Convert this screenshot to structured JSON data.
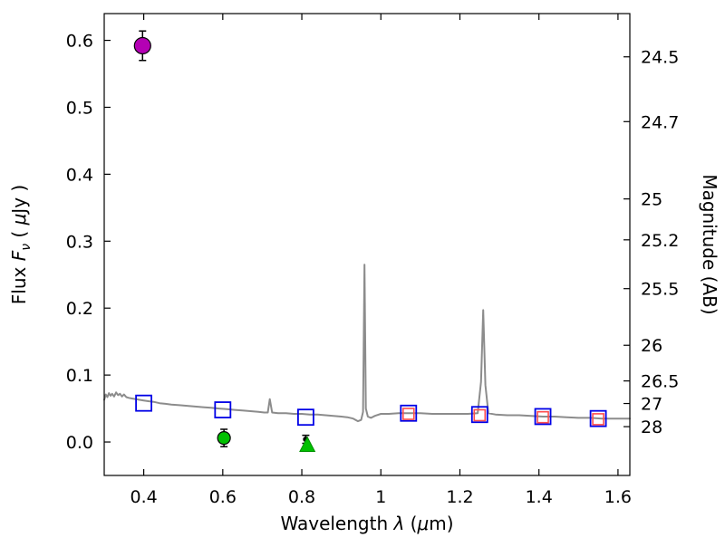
{
  "colors": {
    "background": "#ffffff",
    "frame": "#000000",
    "spectrum_gray": "#8c8c8c",
    "blue_square": "#0000e6",
    "red_square": "#ff4d4d",
    "magenta_point": "#b400b4",
    "green_point": "#00c000",
    "black_point": "#000000"
  },
  "chart_data": {
    "type": "line",
    "title": "",
    "xlabel_text": "Wavelength λ (μm)",
    "ylabel_left_text": "Flux Fν ( μJy )",
    "ylabel_right_text": "Magnitude (AB)",
    "xlabel_parts": [
      {
        "t": "Wavelength  "
      },
      {
        "t": "λ",
        "i": 1
      },
      {
        "t": " ("
      },
      {
        "t": "μ",
        "i": 1
      },
      {
        "t": "m)"
      }
    ],
    "ylabel_left_parts": [
      {
        "t": "Flux  "
      },
      {
        "t": "F",
        "i": 1
      },
      {
        "t": "ν",
        "i": 1,
        "sub": 1
      },
      {
        "t": "  ( "
      },
      {
        "t": "μ",
        "i": 1
      },
      {
        "t": "Jy )"
      }
    ],
    "ylabel_right_parts": [
      {
        "t": "Magnitude (AB)"
      }
    ],
    "xlim": [
      0.3,
      1.63
    ],
    "ylim": [
      -0.05,
      0.64
    ],
    "grid": false,
    "legend": null,
    "x_ticks": [
      0.4,
      0.6,
      0.8,
      1.0,
      1.2,
      1.4,
      1.6
    ],
    "x_tick_labels": [
      "0.4",
      "0.6",
      "0.8",
      "1",
      "1.2",
      "1.4",
      "1.6"
    ],
    "y_ticks_left": [
      0.0,
      0.1,
      0.2,
      0.3,
      0.4,
      0.5,
      0.6
    ],
    "y_tick_labels_left": [
      "0.0",
      "0.1",
      "0.2",
      "0.3",
      "0.4",
      "0.5",
      "0.6"
    ],
    "y_ticks_right": [
      {
        "label": "24.5",
        "flux": 0.5754
      },
      {
        "label": "24.7",
        "flux": 0.4786
      },
      {
        "label": "25",
        "flux": 0.3631
      },
      {
        "label": "25.2",
        "flux": 0.302
      },
      {
        "label": "25.5",
        "flux": 0.2291
      },
      {
        "label": "26",
        "flux": 0.1445
      },
      {
        "label": "26.5",
        "flux": 0.0912
      },
      {
        "label": "27",
        "flux": 0.0575
      },
      {
        "label": "28",
        "flux": 0.0229
      }
    ],
    "series": [
      {
        "name": "model-spectrum",
        "kind": "line",
        "color": "#8c8c8c",
        "width": 2,
        "x": [
          0.3,
          0.304,
          0.308,
          0.312,
          0.316,
          0.32,
          0.325,
          0.33,
          0.335,
          0.34,
          0.345,
          0.35,
          0.356,
          0.362,
          0.37,
          0.38,
          0.39,
          0.4,
          0.412,
          0.425,
          0.44,
          0.455,
          0.47,
          0.49,
          0.51,
          0.53,
          0.55,
          0.57,
          0.59,
          0.61,
          0.63,
          0.65,
          0.67,
          0.69,
          0.705,
          0.714,
          0.719,
          0.725,
          0.74,
          0.76,
          0.78,
          0.8,
          0.82,
          0.84,
          0.86,
          0.88,
          0.9,
          0.915,
          0.93,
          0.942,
          0.95,
          0.955,
          0.9585,
          0.962,
          0.967,
          0.975,
          0.985,
          1.0,
          1.02,
          1.045,
          1.07,
          1.1,
          1.13,
          1.16,
          1.19,
          1.22,
          1.245,
          1.2535,
          1.259,
          1.2645,
          1.272,
          1.29,
          1.32,
          1.35,
          1.38,
          1.41,
          1.44,
          1.47,
          1.5,
          1.53,
          1.56,
          1.59,
          1.615,
          1.63
        ],
        "y": [
          0.063,
          0.071,
          0.067,
          0.073,
          0.069,
          0.072,
          0.068,
          0.074,
          0.07,
          0.072,
          0.068,
          0.071,
          0.067,
          0.066,
          0.065,
          0.064,
          0.063,
          0.062,
          0.061,
          0.06,
          0.058,
          0.057,
          0.056,
          0.055,
          0.054,
          0.053,
          0.052,
          0.051,
          0.05,
          0.049,
          0.048,
          0.047,
          0.046,
          0.045,
          0.044,
          0.044,
          0.064,
          0.044,
          0.043,
          0.043,
          0.042,
          0.042,
          0.041,
          0.041,
          0.04,
          0.039,
          0.038,
          0.037,
          0.035,
          0.031,
          0.033,
          0.045,
          0.265,
          0.05,
          0.038,
          0.036,
          0.039,
          0.042,
          0.042,
          0.043,
          0.043,
          0.043,
          0.042,
          0.042,
          0.042,
          0.042,
          0.043,
          0.09,
          0.197,
          0.085,
          0.043,
          0.041,
          0.04,
          0.04,
          0.039,
          0.038,
          0.038,
          0.037,
          0.036,
          0.036,
          0.035,
          0.035,
          0.035,
          0.035
        ]
      },
      {
        "name": "blue-open-squares",
        "kind": "scatter",
        "marker": "open-square",
        "color": "#0000e6",
        "size": 17,
        "stroke_width": 1.8,
        "points": [
          [
            0.4,
            0.058
          ],
          [
            0.6,
            0.048
          ],
          [
            0.81,
            0.037
          ],
          [
            1.07,
            0.043
          ],
          [
            1.25,
            0.041
          ],
          [
            1.41,
            0.038
          ],
          [
            1.55,
            0.035
          ]
        ]
      },
      {
        "name": "red-open-squares",
        "kind": "scatter",
        "marker": "open-square",
        "color": "#ff4d4d",
        "size": 12,
        "stroke_width": 1.6,
        "points": [
          [
            1.07,
            0.042
          ],
          [
            1.25,
            0.04
          ],
          [
            1.41,
            0.037
          ],
          [
            1.55,
            0.034
          ]
        ]
      },
      {
        "name": "magenta-circle-point",
        "kind": "scatter",
        "marker": "circle",
        "color": "#b400b4",
        "edge": "#000000",
        "size": 18,
        "points": [
          [
            0.397,
            0.592
          ]
        ],
        "yerr": [
          0.022
        ]
      },
      {
        "name": "green-circle-point",
        "kind": "scatter",
        "marker": "circle",
        "color": "#00c000",
        "edge": "#000000",
        "size": 14,
        "points": [
          [
            0.603,
            0.006
          ]
        ],
        "yerr": [
          0.013
        ]
      },
      {
        "name": "black-point",
        "kind": "scatter",
        "marker": "circle",
        "color": "#000000",
        "edge": "#000000",
        "size": 5,
        "points": [
          [
            0.81,
            0.004
          ]
        ],
        "yerr": [
          0.006
        ]
      },
      {
        "name": "green-triangle-limit",
        "kind": "scatter",
        "marker": "triangle-up",
        "color": "#00c000",
        "edge": "#009000",
        "size": 15,
        "points": [
          [
            0.814,
            -0.005
          ]
        ]
      }
    ]
  }
}
